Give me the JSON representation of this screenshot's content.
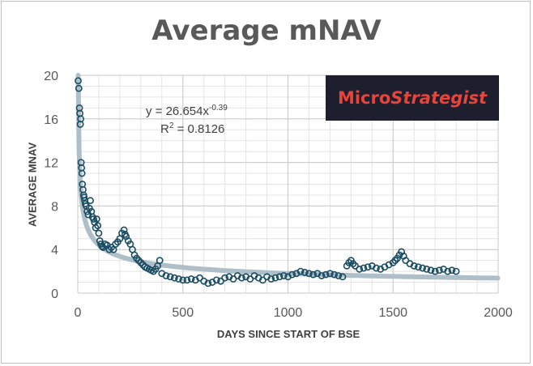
{
  "chart_data": {
    "type": "scatter",
    "title": "Average mNAV",
    "xlabel": "DAYS SINCE START OF BSE",
    "ylabel": "AVERAGE MNAV",
    "xlim": [
      0,
      2000
    ],
    "ylim": [
      0,
      20
    ],
    "x_ticks": [
      "0",
      "500",
      "1000",
      "1500",
      "2000"
    ],
    "y_ticks": [
      "0",
      "4",
      "8",
      "12",
      "16",
      "20"
    ],
    "grid": true,
    "marker_color": "#1b4d63",
    "trendline_color": "#aebfc9",
    "trendline": {
      "type": "power",
      "a": 26.654,
      "b": -0.39,
      "equation_prefix": "y = 26.654x",
      "equation_exponent": "-0.39",
      "r2_prefix": "R",
      "r2_exponent": "2",
      "r2_suffix": " = 0.8126"
    },
    "series": [
      {
        "x": [
          2,
          5,
          8,
          10,
          12,
          14,
          16,
          18,
          20,
          22,
          25,
          28,
          30,
          33,
          36,
          40,
          45,
          50,
          55,
          60,
          65,
          70,
          75,
          80,
          85,
          90,
          95,
          100,
          105,
          110,
          115,
          120,
          130,
          140,
          150,
          160,
          170,
          180,
          190,
          200,
          210,
          220,
          225,
          230,
          240,
          250,
          260,
          270,
          280,
          290,
          300,
          310,
          320,
          330,
          340,
          350,
          360,
          370,
          380,
          390,
          400,
          420,
          440,
          460,
          480,
          500,
          520,
          540,
          560,
          580,
          600,
          620,
          640,
          660,
          680,
          700,
          720,
          740,
          760,
          780,
          800,
          820,
          840,
          860,
          880,
          900,
          920,
          940,
          960,
          980,
          1000,
          1020,
          1040,
          1060,
          1080,
          1100,
          1120,
          1140,
          1160,
          1180,
          1200,
          1220,
          1240,
          1260,
          1280,
          1290,
          1300,
          1310,
          1320,
          1340,
          1360,
          1380,
          1400,
          1420,
          1440,
          1460,
          1480,
          1500,
          1510,
          1520,
          1530,
          1540,
          1550,
          1560,
          1580,
          1600,
          1620,
          1640,
          1660,
          1680,
          1700,
          1720,
          1740,
          1760,
          1780,
          1800
        ],
        "y": [
          19.5,
          18.8,
          17.0,
          16.5,
          15.5,
          16.0,
          12.0,
          11.5,
          11.0,
          10.0,
          9.5,
          9.0,
          8.8,
          8.5,
          8.2,
          8.0,
          7.5,
          7.2,
          7.8,
          8.5,
          7.5,
          7.0,
          6.8,
          6.5,
          6.0,
          6.8,
          6.2,
          5.5,
          4.8,
          4.5,
          4.3,
          4.2,
          4.5,
          4.4,
          4.0,
          4.2,
          4.0,
          4.5,
          4.7,
          5.0,
          5.5,
          5.8,
          5.4,
          5.2,
          4.8,
          4.5,
          4.0,
          3.5,
          3.2,
          3.0,
          2.8,
          2.6,
          2.4,
          2.3,
          2.2,
          2.1,
          2.0,
          2.2,
          2.5,
          3.0,
          1.8,
          1.6,
          1.5,
          1.4,
          1.3,
          1.2,
          1.2,
          1.3,
          1.2,
          1.4,
          1.1,
          0.9,
          1.0,
          1.2,
          1.1,
          1.4,
          1.5,
          1.3,
          1.6,
          1.4,
          1.5,
          1.3,
          1.6,
          1.4,
          1.2,
          1.5,
          1.3,
          1.4,
          1.5,
          1.6,
          1.5,
          1.7,
          1.8,
          2.0,
          1.9,
          1.8,
          1.7,
          1.8,
          1.6,
          1.7,
          1.8,
          1.7,
          1.6,
          1.5,
          2.5,
          2.8,
          3.0,
          2.7,
          2.5,
          2.2,
          2.3,
          2.4,
          2.5,
          2.3,
          2.2,
          2.4,
          2.6,
          2.8,
          3.0,
          3.2,
          3.5,
          3.8,
          3.4,
          3.0,
          2.7,
          2.5,
          2.4,
          2.3,
          2.2,
          2.1,
          2.0,
          2.1,
          2.2,
          2.0,
          2.1,
          2.0
        ]
      }
    ]
  },
  "logo": {
    "part1": "Micro",
    "part2": "Strategist"
  }
}
